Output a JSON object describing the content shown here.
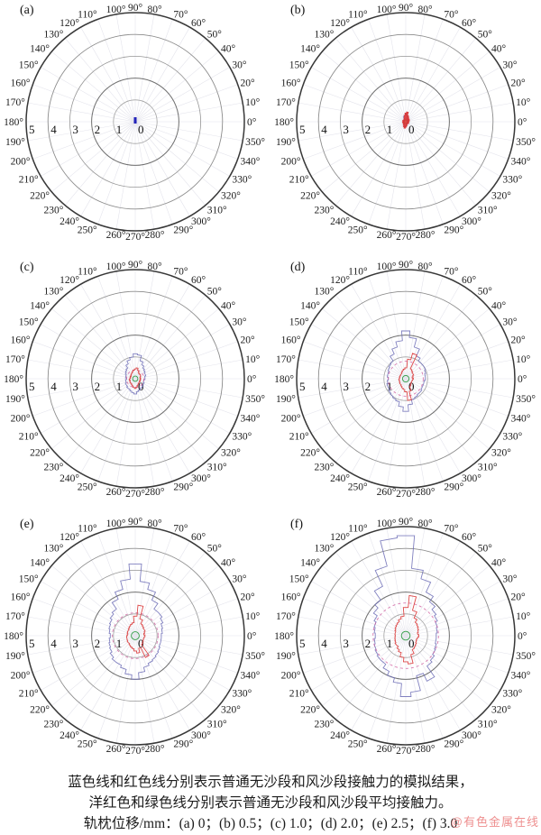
{
  "figure": {
    "caption_lines": [
      "蓝色线和红色线分别表示普通无沙段和风沙段接触力的模拟结果，",
      "洋红色和绿色线分别表示普通无沙段和风沙段平均接触力。",
      "轨枕位移/mm：(a) 0；(b) 0.5；(c) 1.0；(d) 2.0；(e) 2.5；(f) 3.0"
    ],
    "watermark": "@有色金属在线",
    "colors": {
      "blue_sim": "#6b6bb5",
      "red_sim": "#d93434",
      "magenta_avg": "#cf5a9c",
      "green_avg": "#2f9e44",
      "ring_dark": "#383838",
      "ring_mid": "#8c8c8c",
      "spoke": "#e4e4ec",
      "text": "#1c1c1c",
      "watermark": "#ee9090"
    }
  },
  "chart_data": {
    "type": "polar",
    "legend": {
      "blue": "普通无沙段接触力的模拟结果",
      "red": "风沙段接触力的模拟结果",
      "magenta": "普通无沙段平均接触力",
      "green": "风沙段平均接触力"
    },
    "axes": {
      "r_max": 5,
      "r_tick_labels": [
        "5",
        "4",
        "3",
        "2",
        "1",
        "0"
      ],
      "theta_tick_step_deg": 10,
      "theta_tick_labels": [
        "0°",
        "10°",
        "20°",
        "30°",
        "40°",
        "50°",
        "60°",
        "70°",
        "80°",
        "90°",
        "100°",
        "110°",
        "120°",
        "130°",
        "140°",
        "150°",
        "160°",
        "170°",
        "180°",
        "190°",
        "200°",
        "210°",
        "220°",
        "230°",
        "240°",
        "250°",
        "260°",
        "270°",
        "280°",
        "290°",
        "300°",
        "310°",
        "320°",
        "330°",
        "340°",
        "350°"
      ]
    },
    "panels": [
      {
        "panel": "(a)",
        "displacement_mm": "0",
        "blue": 0.05,
        "red": 0,
        "magenta": 0,
        "green": 0,
        "center_dot": true
      },
      {
        "panel": "(b)",
        "displacement_mm": "0.5",
        "blue": [
          0.1,
          0.12,
          0.1,
          0.12,
          0.15,
          0.12,
          0.15,
          0.2,
          0.3,
          0.35,
          0.3,
          0.25,
          0.15,
          0.12,
          0.1,
          0.1,
          0.12,
          0.1,
          0.1,
          0.12,
          0.1,
          0.12,
          0.1,
          0.12,
          0.15,
          0.2,
          0.25,
          0.2,
          0.15,
          0.12,
          0.1,
          0.1,
          0.12,
          0.1,
          0.1,
          0.1
        ],
        "red": [
          0.15,
          0.12,
          0.18,
          0.15,
          0.2,
          0.15,
          0.25,
          0.3,
          0.45,
          0.4,
          0.3,
          0.2,
          0.15,
          0.12,
          0.1,
          0.12,
          0.15,
          0.1,
          0.12,
          0.15,
          0.1,
          0.12,
          0.15,
          0.12,
          0.2,
          0.25,
          0.3,
          0.25,
          0.2,
          0.15,
          0.12,
          0.1,
          0.12,
          0.15,
          0.12,
          0.1
        ],
        "red_fill": true,
        "magenta": 0.12,
        "green": 0.08
      },
      {
        "panel": "(c)",
        "displacement_mm": "1.0",
        "blue": [
          0.45,
          0.45,
          0.5,
          0.5,
          0.55,
          0.6,
          0.7,
          0.85,
          1.1,
          1.15,
          1.0,
          0.9,
          0.75,
          0.6,
          0.55,
          0.5,
          0.45,
          0.45,
          0.4,
          0.45,
          0.45,
          0.5,
          0.5,
          0.55,
          0.55,
          0.6,
          0.65,
          0.7,
          0.6,
          0.55,
          0.5,
          0.5,
          0.45,
          0.45,
          0.4,
          0.4
        ],
        "red": [
          0.25,
          0.22,
          0.25,
          0.28,
          0.3,
          0.28,
          0.32,
          0.4,
          0.5,
          0.45,
          0.4,
          0.35,
          0.3,
          0.28,
          0.25,
          0.22,
          0.25,
          0.22,
          0.25,
          0.28,
          0.25,
          0.28,
          0.3,
          0.28,
          0.32,
          0.35,
          0.4,
          0.45,
          0.38,
          0.32,
          0.28,
          0.25,
          0.25,
          0.22,
          0.25,
          0.22
        ],
        "magenta": 0.4,
        "green": 0.12
      },
      {
        "panel": "(d)",
        "displacement_mm": "2.0",
        "blue": [
          0.9,
          0.9,
          0.95,
          1.0,
          1.0,
          1.0,
          1.15,
          1.5,
          1.9,
          2.2,
          1.75,
          1.5,
          1.25,
          1.0,
          0.95,
          0.9,
          0.85,
          0.85,
          0.8,
          0.85,
          0.9,
          0.9,
          0.95,
          1.0,
          1.05,
          1.1,
          1.3,
          1.5,
          1.2,
          1.0,
          0.95,
          0.9,
          0.9,
          0.85,
          0.85,
          0.85
        ],
        "red": [
          0.35,
          0.3,
          0.35,
          0.4,
          0.4,
          0.45,
          0.5,
          1.2,
          0.9,
          0.5,
          0.45,
          0.4,
          0.35,
          0.3,
          0.3,
          0.28,
          0.3,
          0.28,
          0.3,
          0.32,
          0.3,
          0.32,
          0.35,
          0.35,
          0.4,
          0.45,
          0.5,
          0.6,
          1.0,
          0.6,
          0.4,
          0.35,
          0.32,
          0.3,
          0.3,
          0.32
        ],
        "magenta": 0.8,
        "green": 0.15
      },
      {
        "panel": "(e)",
        "displacement_mm": "2.5",
        "blue": [
          1.2,
          1.25,
          1.3,
          1.4,
          1.5,
          1.5,
          1.8,
          2.2,
          2.5,
          3.3,
          2.6,
          2.2,
          1.85,
          1.5,
          1.4,
          1.3,
          1.25,
          1.2,
          1.15,
          1.2,
          1.25,
          1.3,
          1.4,
          1.5,
          1.5,
          1.6,
          1.8,
          2.0,
          1.7,
          1.5,
          1.4,
          1.35,
          1.3,
          1.25,
          1.2,
          1.2
        ],
        "red": [
          0.45,
          0.4,
          0.45,
          0.5,
          0.5,
          0.55,
          0.6,
          0.8,
          1.4,
          0.9,
          0.6,
          0.55,
          0.5,
          0.45,
          0.4,
          0.4,
          0.38,
          0.35,
          0.38,
          0.4,
          0.4,
          0.42,
          0.45,
          0.45,
          0.5,
          0.55,
          0.6,
          0.7,
          0.8,
          0.6,
          1.1,
          0.5,
          0.45,
          0.42,
          0.4,
          0.42
        ],
        "magenta": 1.05,
        "green": 0.18
      },
      {
        "panel": "(f)",
        "displacement_mm": "3.0",
        "blue": [
          1.4,
          1.45,
          1.5,
          1.6,
          1.7,
          1.9,
          2.2,
          2.7,
          3.1,
          4.6,
          4.5,
          3.3,
          2.5,
          2.0,
          1.8,
          1.6,
          1.5,
          1.45,
          1.4,
          1.45,
          1.5,
          1.55,
          1.6,
          1.6,
          1.8,
          2.0,
          2.2,
          2.8,
          2.6,
          1.9,
          2.3,
          1.7,
          1.6,
          1.5,
          1.45,
          1.4
        ],
        "red": [
          0.6,
          0.55,
          0.6,
          0.65,
          0.7,
          0.75,
          0.9,
          1.2,
          1.85,
          1.3,
          0.9,
          0.8,
          0.7,
          0.65,
          0.6,
          0.55,
          0.5,
          0.5,
          0.48,
          0.5,
          0.52,
          0.55,
          0.6,
          0.6,
          0.7,
          0.8,
          1.0,
          1.2,
          1.3,
          0.9,
          0.7,
          0.65,
          0.6,
          0.55,
          0.52,
          0.55
        ],
        "magenta": 1.5,
        "green": 0.2
      }
    ]
  }
}
